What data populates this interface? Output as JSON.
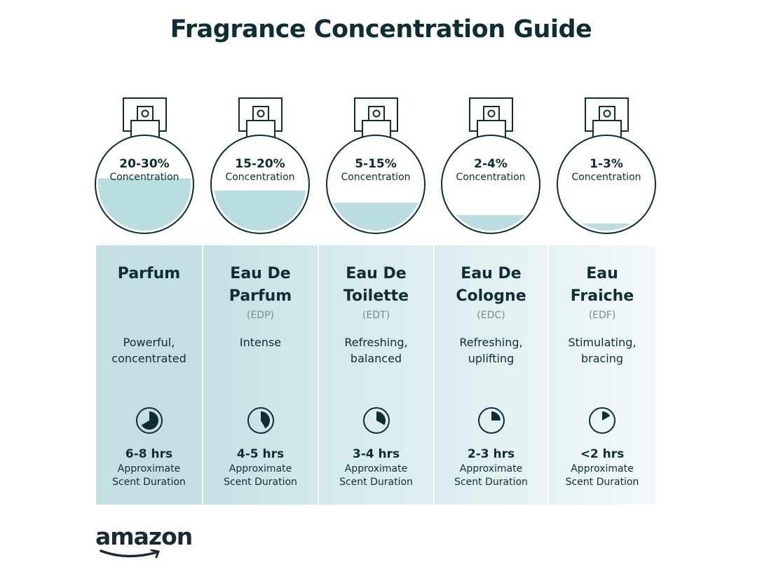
{
  "title": "Fragrance Concentration Guide",
  "colors": {
    "text": "#0f2e33",
    "liquid": "#b9dde1",
    "panel_dark": "#bfdfe2",
    "panel_light": "#f2f8f9"
  },
  "types": [
    {
      "concentration": "20-30%",
      "concentration_label": "Concentration",
      "name_line1": "Parfum",
      "name_line2": "",
      "abbreviation": "",
      "description_line1": "Powerful,",
      "description_line2": "concentrated",
      "duration": "6-8 hrs",
      "duration_label_line1": "Approximate",
      "duration_label_line2": "Scent Duration",
      "fill_level": 0.45,
      "clock_fraction": 0.667,
      "icon": "clock-icon"
    },
    {
      "concentration": "15-20%",
      "concentration_label": "Concentration",
      "name_line1": "Eau De",
      "name_line2": "Parfum",
      "abbreviation": "(EDP)",
      "description_line1": "Intense",
      "description_line2": "",
      "duration": "4-5 hrs",
      "duration_label_line1": "Approximate",
      "duration_label_line2": "Scent Duration",
      "fill_level": 0.35,
      "clock_fraction": 0.417,
      "icon": "clock-icon"
    },
    {
      "concentration": "5-15%",
      "concentration_label": "Concentration",
      "name_line1": "Eau De",
      "name_line2": "Toilette",
      "abbreviation": "(EDT)",
      "description_line1": "Refreshing,",
      "description_line2": "balanced",
      "duration": "3-4 hrs",
      "duration_label_line1": "Approximate",
      "duration_label_line2": "Scent Duration",
      "fill_level": 0.25,
      "clock_fraction": 0.333,
      "icon": "clock-icon"
    },
    {
      "concentration": "2-4%",
      "concentration_label": "Concentration",
      "name_line1": "Eau De",
      "name_line2": "Cologne",
      "abbreviation": "(EDC)",
      "description_line1": "Refreshing,",
      "description_line2": "uplifting",
      "duration": "2-3 hrs",
      "duration_label_line1": "Approximate",
      "duration_label_line2": "Scent Duration",
      "fill_level": 0.15,
      "clock_fraction": 0.25,
      "icon": "clock-icon"
    },
    {
      "concentration": "1-3%",
      "concentration_label": "Concentration",
      "name_line1": "Eau",
      "name_line2": "Fraiche",
      "abbreviation": "(EDF)",
      "description_line1": "Stimulating,",
      "description_line2": "bracing",
      "duration": "<2 hrs",
      "duration_label_line1": "Approximate",
      "duration_label_line2": "Scent Duration",
      "fill_level": 0.08,
      "clock_fraction": 0.167,
      "icon": "clock-icon"
    }
  ],
  "logo": "amazon"
}
